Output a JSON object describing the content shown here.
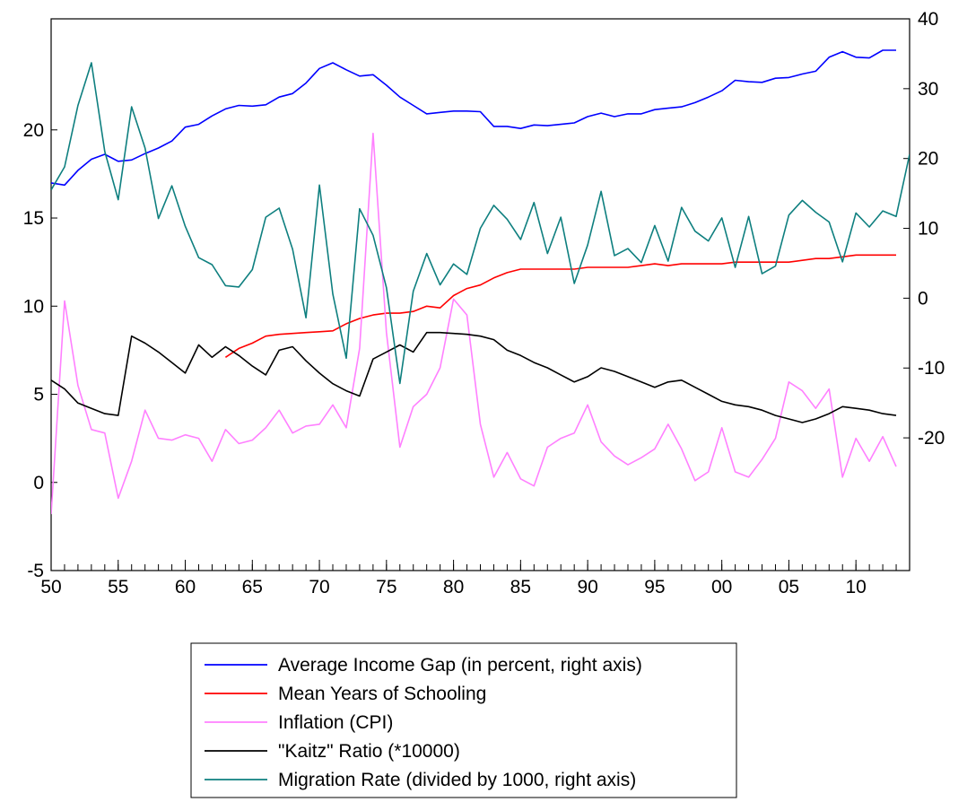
{
  "chart_data": {
    "type": "line",
    "title": "",
    "xlabel": "",
    "ylabel_left": "",
    "ylabel_right": "",
    "x_ticks": [
      {
        "value": 1950,
        "label": "50"
      },
      {
        "value": 1955,
        "label": "55"
      },
      {
        "value": 1960,
        "label": "60"
      },
      {
        "value": 1965,
        "label": "65"
      },
      {
        "value": 1970,
        "label": "70"
      },
      {
        "value": 1975,
        "label": "75"
      },
      {
        "value": 1980,
        "label": "80"
      },
      {
        "value": 1985,
        "label": "85"
      },
      {
        "value": 1990,
        "label": "90"
      },
      {
        "value": 1995,
        "label": "95"
      },
      {
        "value": 2000,
        "label": "00"
      },
      {
        "value": 2005,
        "label": "05"
      },
      {
        "value": 2010,
        "label": "10"
      }
    ],
    "x_range": [
      1950,
      2014
    ],
    "left_axis": {
      "range": [
        -5,
        26.3
      ],
      "ticks": [
        -5,
        0,
        5,
        10,
        15,
        20
      ]
    },
    "right_axis": {
      "range": [
        -39,
        40
      ],
      "ticks": [
        -20,
        -10,
        0,
        10,
        20,
        30,
        40
      ]
    },
    "grid": false,
    "legend_position": "bottom-center",
    "series": [
      {
        "name": "Average Income Gap (in percent, right axis)",
        "axis": "right",
        "color": "#0000ff",
        "x": [
          1950,
          1951,
          1952,
          1953,
          1954,
          1955,
          1956,
          1957,
          1958,
          1959,
          1960,
          1961,
          1962,
          1963,
          1964,
          1965,
          1966,
          1967,
          1968,
          1969,
          1970,
          1971,
          1972,
          1973,
          1974,
          1975,
          1976,
          1977,
          1978,
          1979,
          1980,
          1981,
          1982,
          1983,
          1984,
          1985,
          1986,
          1987,
          1988,
          1989,
          1990,
          1991,
          1992,
          1993,
          1994,
          1995,
          1996,
          1997,
          1998,
          1999,
          2000,
          2001,
          2002,
          2003,
          2004,
          2005,
          2006,
          2007,
          2008,
          2009,
          2010,
          2011,
          2012,
          2013
        ],
        "values": [
          16.5,
          16.2,
          18.3,
          19.9,
          20.6,
          19.6,
          19.8,
          20.7,
          21.5,
          22.5,
          24.5,
          24.9,
          26.1,
          27.1,
          27.6,
          27.5,
          27.7,
          28.8,
          29.3,
          30.8,
          32.9,
          33.7,
          32.7,
          31.8,
          32.0,
          30.5,
          28.8,
          27.6,
          26.4,
          26.6,
          26.8,
          26.8,
          26.7,
          24.6,
          24.6,
          24.3,
          24.8,
          24.7,
          24.9,
          25.1,
          26.0,
          26.5,
          26.0,
          26.4,
          26.4,
          27.0,
          27.2,
          27.4,
          28.0,
          28.8,
          29.7,
          31.2,
          31.0,
          30.9,
          31.5,
          31.6,
          32.1,
          32.5,
          34.5,
          35.3,
          34.5,
          34.4,
          35.5,
          35.5
        ]
      },
      {
        "name": "Mean Years of Schooling",
        "axis": "left",
        "color": "#ff0000",
        "x": [
          1963,
          1964,
          1965,
          1966,
          1967,
          1968,
          1969,
          1970,
          1971,
          1972,
          1973,
          1974,
          1975,
          1976,
          1977,
          1978,
          1979,
          1980,
          1981,
          1982,
          1983,
          1984,
          1985,
          1986,
          1987,
          1988,
          1989,
          1990,
          1991,
          1992,
          1993,
          1994,
          1995,
          1996,
          1997,
          1998,
          1999,
          2000,
          2001,
          2002,
          2003,
          2004,
          2005,
          2006,
          2007,
          2008,
          2009,
          2010,
          2011,
          2012,
          2013
        ],
        "values": [
          7.1,
          7.6,
          7.9,
          8.3,
          8.4,
          8.45,
          8.5,
          8.55,
          8.6,
          9.0,
          9.3,
          9.5,
          9.6,
          9.6,
          9.7,
          10.0,
          9.9,
          10.6,
          11.0,
          11.2,
          11.6,
          11.9,
          12.1,
          12.1,
          12.1,
          12.1,
          12.1,
          12.2,
          12.2,
          12.2,
          12.2,
          12.3,
          12.4,
          12.3,
          12.4,
          12.4,
          12.4,
          12.4,
          12.5,
          12.5,
          12.5,
          12.5,
          12.5,
          12.6,
          12.7,
          12.7,
          12.8,
          12.9,
          12.9,
          12.9,
          12.9
        ]
      },
      {
        "name": "Inflation (CPI)",
        "axis": "left",
        "color": "#ff80ff",
        "x": [
          1950,
          1951,
          1952,
          1953,
          1954,
          1955,
          1956,
          1957,
          1958,
          1959,
          1960,
          1961,
          1962,
          1963,
          1964,
          1965,
          1966,
          1967,
          1968,
          1969,
          1970,
          1971,
          1972,
          1973,
          1974,
          1975,
          1976,
          1977,
          1978,
          1979,
          1980,
          1981,
          1982,
          1983,
          1984,
          1985,
          1986,
          1987,
          1988,
          1989,
          1990,
          1991,
          1992,
          1993,
          1994,
          1995,
          1996,
          1997,
          1998,
          1999,
          2000,
          2001,
          2002,
          2003,
          2004,
          2005,
          2006,
          2007,
          2008,
          2009,
          2010,
          2011,
          2012,
          2013
        ],
        "values": [
          -1.8,
          10.3,
          5.5,
          3.0,
          2.8,
          -0.9,
          1.2,
          4.1,
          2.5,
          2.4,
          2.7,
          2.5,
          1.2,
          3.0,
          2.2,
          2.4,
          3.1,
          4.1,
          2.8,
          3.2,
          3.3,
          4.4,
          3.1,
          7.6,
          19.8,
          8.5,
          2.0,
          4.3,
          5.0,
          6.5,
          10.4,
          9.5,
          3.3,
          0.3,
          1.7,
          0.2,
          -0.2,
          2.0,
          2.5,
          2.8,
          4.4,
          2.3,
          1.5,
          1.0,
          1.4,
          1.9,
          3.3,
          1.9,
          0.1,
          0.6,
          3.1,
          0.6,
          0.3,
          1.3,
          2.5,
          5.7,
          5.2,
          4.2,
          5.3,
          0.3,
          2.5,
          1.2,
          2.6,
          0.9
        ]
      },
      {
        "name": "\"Kaitz\" Ratio (*10000)",
        "axis": "left",
        "color": "#000000",
        "x": [
          1950,
          1951,
          1952,
          1953,
          1954,
          1955,
          1956,
          1957,
          1958,
          1959,
          1960,
          1961,
          1962,
          1963,
          1964,
          1965,
          1966,
          1967,
          1968,
          1969,
          1970,
          1971,
          1972,
          1973,
          1974,
          1975,
          1976,
          1977,
          1978,
          1979,
          1980,
          1981,
          1982,
          1983,
          1984,
          1985,
          1986,
          1987,
          1988,
          1989,
          1990,
          1991,
          1992,
          1993,
          1994,
          1995,
          1996,
          1997,
          1998,
          1999,
          2000,
          2001,
          2002,
          2003,
          2004,
          2005,
          2006,
          2007,
          2008,
          2009,
          2010,
          2011,
          2012,
          2013
        ],
        "values": [
          5.8,
          5.3,
          4.5,
          4.2,
          3.9,
          3.8,
          8.3,
          7.9,
          7.4,
          6.8,
          6.2,
          7.8,
          7.1,
          7.7,
          7.2,
          6.6,
          6.1,
          7.5,
          7.7,
          6.9,
          6.2,
          5.6,
          5.2,
          4.9,
          7.0,
          7.4,
          7.8,
          7.4,
          8.5,
          8.5,
          8.45,
          8.4,
          8.3,
          8.1,
          7.5,
          7.2,
          6.8,
          6.5,
          6.1,
          5.7,
          6.0,
          6.5,
          6.3,
          6.0,
          5.7,
          5.4,
          5.7,
          5.8,
          5.4,
          5.0,
          4.6,
          4.4,
          4.3,
          4.1,
          3.8,
          3.6,
          3.4,
          3.6,
          3.9,
          4.3,
          4.2,
          4.1,
          3.9,
          3.8
        ]
      },
      {
        "name": "Migration Rate (divided by 1000, right axis)",
        "axis": "right",
        "color": "#0e7f7f",
        "x": [
          1950,
          1951,
          1952,
          1953,
          1954,
          1955,
          1956,
          1957,
          1958,
          1959,
          1960,
          1961,
          1962,
          1963,
          1964,
          1965,
          1966,
          1967,
          1968,
          1969,
          1970,
          1971,
          1972,
          1973,
          1974,
          1975,
          1976,
          1977,
          1978,
          1979,
          1980,
          1981,
          1982,
          1983,
          1984,
          1985,
          1986,
          1987,
          1988,
          1989,
          1990,
          1991,
          1992,
          1993,
          1994,
          1995,
          1996,
          1997,
          1998,
          1999,
          2000,
          2001,
          2002,
          2003,
          2004,
          2005,
          2006,
          2007,
          2008,
          2009,
          2010,
          2011,
          2012,
          2013,
          2014
        ],
        "values": [
          15.5,
          18.8,
          27.6,
          33.7,
          21.0,
          14.1,
          27.4,
          21.5,
          11.4,
          16.1,
          10.3,
          5.8,
          4.8,
          1.8,
          1.6,
          4.1,
          11.6,
          12.9,
          7.0,
          -2.8,
          16.2,
          0.6,
          -8.6,
          12.8,
          9.0,
          1.5,
          -12.2,
          1.0,
          6.4,
          1.9,
          4.9,
          3.4,
          10.0,
          13.3,
          11.3,
          8.4,
          13.7,
          6.4,
          11.6,
          2.1,
          7.6,
          15.3,
          6.1,
          7.1,
          5.1,
          10.4,
          5.3,
          13.0,
          9.6,
          8.2,
          11.5,
          4.4,
          11.7,
          3.5,
          4.6,
          11.9,
          14.0,
          12.3,
          10.9,
          5.2,
          12.2,
          10.2,
          12.5,
          11.7,
          20.6
        ]
      }
    ]
  }
}
